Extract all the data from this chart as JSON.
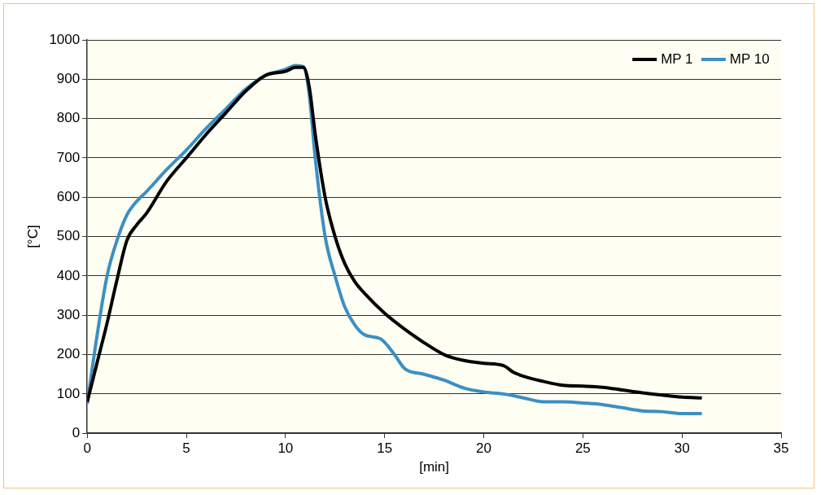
{
  "chart_data": {
    "type": "line",
    "xlabel": "[min]",
    "ylabel": "[°C]",
    "xlim": [
      0,
      35
    ],
    "xticks": [
      0,
      5,
      10,
      15,
      20,
      25,
      30,
      35
    ],
    "ylim": [
      0,
      1000
    ],
    "yticks": [
      0,
      100,
      200,
      300,
      400,
      500,
      600,
      700,
      800,
      900,
      1000
    ],
    "grid": "y",
    "legend": "top right",
    "marker": "none",
    "line_style": "solid",
    "series": [
      {
        "name": "MP 1",
        "color": "#000000",
        "x": [
          0,
          0.5,
          1,
          1.5,
          2,
          2.5,
          3,
          4,
          5,
          6,
          7,
          8,
          9,
          10,
          10.5,
          10.9,
          11.2,
          11.5,
          12,
          12.5,
          13,
          13.5,
          14,
          15,
          16,
          17,
          18,
          19,
          20,
          21,
          21.5,
          22,
          23,
          24,
          25,
          26,
          27,
          28,
          29,
          30,
          31
        ],
        "values": [
          80,
          180,
          280,
          390,
          490,
          530,
          560,
          640,
          700,
          760,
          815,
          870,
          910,
          920,
          930,
          930,
          880,
          760,
          600,
          500,
          430,
          385,
          355,
          305,
          265,
          230,
          200,
          185,
          178,
          172,
          155,
          145,
          132,
          122,
          120,
          117,
          110,
          103,
          97,
          92,
          90
        ]
      },
      {
        "name": "MP 10",
        "color": "#3b8fc4",
        "x": [
          0,
          0.5,
          1,
          1.5,
          2,
          2.5,
          3,
          4,
          5,
          6,
          7,
          8,
          9,
          10,
          10.5,
          10.9,
          11.2,
          11.5,
          12,
          12.5,
          13,
          13.5,
          14,
          14.8,
          15.5,
          16,
          17,
          18,
          19,
          20,
          21,
          22,
          23,
          24,
          25,
          26,
          27,
          28,
          29,
          30,
          31
        ],
        "values": [
          75,
          250,
          400,
          490,
          555,
          590,
          615,
          670,
          720,
          775,
          825,
          875,
          910,
          925,
          935,
          932,
          860,
          700,
          500,
          400,
          320,
          275,
          250,
          240,
          200,
          165,
          150,
          135,
          115,
          105,
          100,
          90,
          80,
          80,
          77,
          73,
          65,
          57,
          55,
          50,
          50
        ]
      }
    ]
  }
}
